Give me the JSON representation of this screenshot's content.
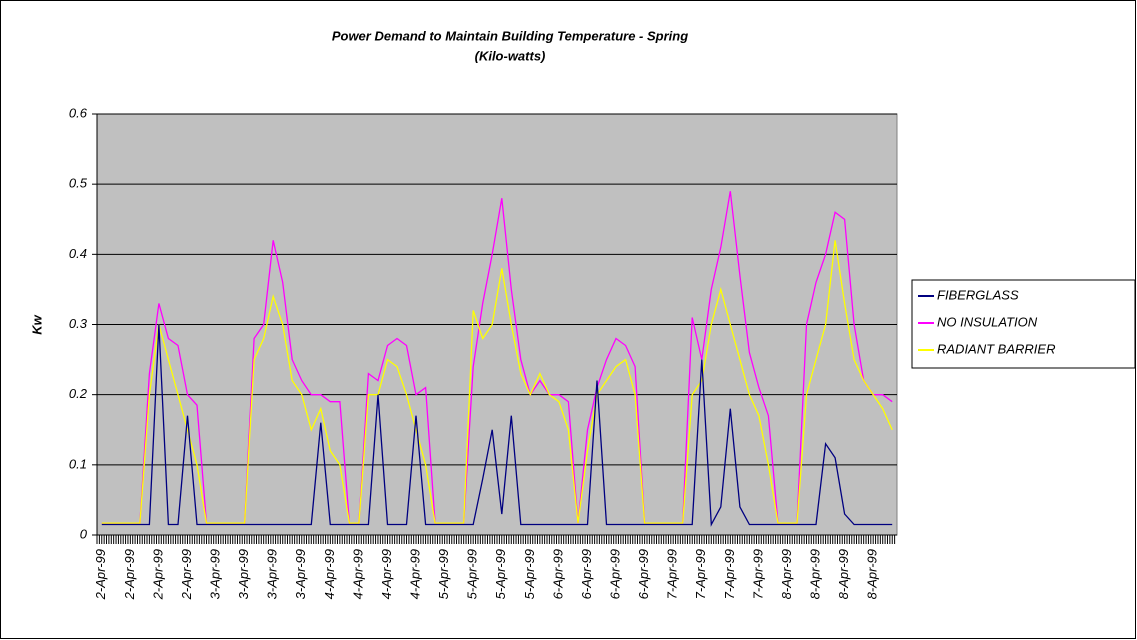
{
  "chart_data": {
    "type": "line",
    "title": "Power Demand to Maintain Building Temperature - Spring",
    "subtitle": "(Kilo-watts)",
    "y_label": "Kw",
    "categories": [
      "2-Apr-99",
      null,
      null,
      "2-Apr-99",
      null,
      null,
      "2-Apr-99",
      null,
      null,
      "2-Apr-99",
      null,
      null,
      "3-Apr-99",
      null,
      null,
      "3-Apr-99",
      null,
      null,
      "3-Apr-99",
      null,
      null,
      "3-Apr-99",
      null,
      null,
      "4-Apr-99",
      null,
      null,
      "4-Apr-99",
      null,
      null,
      "4-Apr-99",
      null,
      null,
      "4-Apr-99",
      null,
      null,
      "5-Apr-99",
      null,
      null,
      "5-Apr-99",
      null,
      null,
      "5-Apr-99",
      null,
      null,
      "5-Apr-99",
      null,
      null,
      "6-Apr-99",
      null,
      null,
      "6-Apr-99",
      null,
      null,
      "6-Apr-99",
      null,
      null,
      "6-Apr-99",
      null,
      null,
      "7-Apr-99",
      null,
      null,
      "7-Apr-99",
      null,
      null,
      "7-Apr-99",
      null,
      null,
      "7-Apr-99",
      null,
      null,
      "8-Apr-99",
      null,
      null,
      "8-Apr-99",
      null,
      null,
      "8-Apr-99",
      null,
      null,
      "8-Apr-99",
      null,
      null
    ],
    "series": [
      {
        "name": "NO INSULATION",
        "color": "#ff00ff",
        "values": [
          0.017,
          0.017,
          0.017,
          0.017,
          0.017,
          0.23,
          0.33,
          0.28,
          0.27,
          0.2,
          0.185,
          0.017,
          0.017,
          0.017,
          0.017,
          0.017,
          0.28,
          0.3,
          0.42,
          0.36,
          0.25,
          0.22,
          0.2,
          0.2,
          0.19,
          0.19,
          0.017,
          0.017,
          0.23,
          0.22,
          0.27,
          0.28,
          0.27,
          0.2,
          0.21,
          0.017,
          0.017,
          0.017,
          0.017,
          0.24,
          0.33,
          0.4,
          0.48,
          0.35,
          0.25,
          0.2,
          0.22,
          0.2,
          0.2,
          0.19,
          0.017,
          0.15,
          0.21,
          0.25,
          0.28,
          0.27,
          0.24,
          0.017,
          0.017,
          0.017,
          0.017,
          0.017,
          0.31,
          0.25,
          0.35,
          0.41,
          0.49,
          0.37,
          0.26,
          0.21,
          0.17,
          0.017,
          0.017,
          0.017,
          0.3,
          0.36,
          0.4,
          0.46,
          0.45,
          0.3,
          0.22,
          0.2,
          0.2,
          0.19
        ]
      },
      {
        "name": "RADIANT BARRIER",
        "color": "#ffff00",
        "values": [
          0.017,
          0.017,
          0.017,
          0.017,
          0.017,
          0.2,
          0.3,
          0.25,
          0.2,
          0.15,
          0.1,
          0.017,
          0.017,
          0.017,
          0.017,
          0.017,
          0.25,
          0.28,
          0.34,
          0.3,
          0.22,
          0.2,
          0.15,
          0.18,
          0.12,
          0.1,
          0.017,
          0.017,
          0.2,
          0.2,
          0.25,
          0.24,
          0.2,
          0.15,
          0.1,
          0.017,
          0.017,
          0.017,
          0.017,
          0.32,
          0.28,
          0.3,
          0.38,
          0.3,
          0.23,
          0.2,
          0.23,
          0.2,
          0.19,
          0.15,
          0.017,
          0.12,
          0.2,
          0.22,
          0.24,
          0.25,
          0.2,
          0.017,
          0.017,
          0.017,
          0.017,
          0.017,
          0.2,
          0.22,
          0.3,
          0.35,
          0.3,
          0.25,
          0.2,
          0.17,
          0.1,
          0.017,
          0.017,
          0.017,
          0.2,
          0.25,
          0.3,
          0.42,
          0.33,
          0.25,
          0.22,
          0.2,
          0.18,
          0.15
        ]
      },
      {
        "name": "FIBERGLASS",
        "color": "#000080",
        "values": [
          0.015,
          0.015,
          0.015,
          0.015,
          0.015,
          0.015,
          0.3,
          0.015,
          0.015,
          0.17,
          0.015,
          0.015,
          0.015,
          0.015,
          0.015,
          0.015,
          0.015,
          0.015,
          0.015,
          0.015,
          0.015,
          0.015,
          0.015,
          0.16,
          0.015,
          0.015,
          0.015,
          0.015,
          0.015,
          0.2,
          0.015,
          0.015,
          0.015,
          0.17,
          0.015,
          0.015,
          0.015,
          0.015,
          0.015,
          0.015,
          0.08,
          0.15,
          0.03,
          0.17,
          0.015,
          0.015,
          0.015,
          0.015,
          0.015,
          0.015,
          0.015,
          0.015,
          0.22,
          0.015,
          0.015,
          0.015,
          0.015,
          0.015,
          0.015,
          0.015,
          0.015,
          0.015,
          0.015,
          0.25,
          0.015,
          0.04,
          0.18,
          0.04,
          0.015,
          0.015,
          0.015,
          0.015,
          0.015,
          0.015,
          0.015,
          0.015,
          0.13,
          0.11,
          0.03,
          0.015,
          0.015,
          0.015,
          0.015,
          0.015
        ]
      }
    ],
    "legend_order": [
      "FIBERGLASS",
      "NO INSULATION",
      "RADIANT BARRIER"
    ],
    "ylim": [
      0,
      0.6
    ],
    "yticks": [
      0,
      0.1,
      0.2,
      0.3,
      0.4,
      0.5,
      0.6
    ],
    "grid": true,
    "legend": "right"
  }
}
